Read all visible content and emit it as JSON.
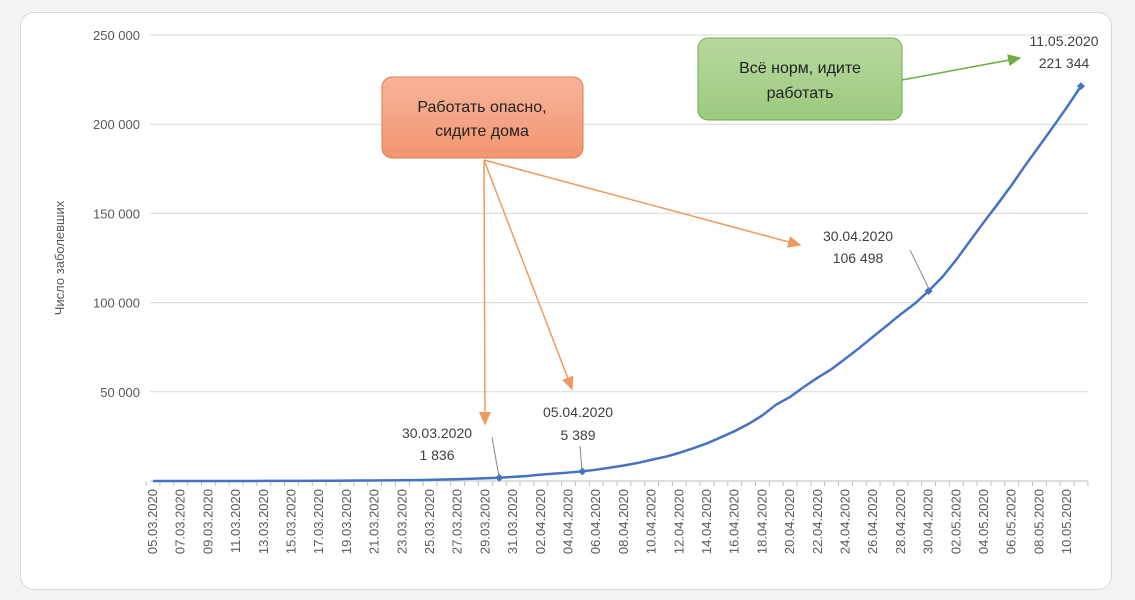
{
  "chart_data": {
    "type": "line",
    "title": "",
    "xlabel": "",
    "ylabel": "Число заболевших",
    "ylim": [
      0,
      250000
    ],
    "yticks": [
      50000,
      100000,
      150000,
      200000,
      250000
    ],
    "ytick_labels": [
      "50 000",
      "100 000",
      "150 000",
      "200 000",
      "250 000"
    ],
    "grid": true,
    "legend": "none",
    "line_color": "#4472c4",
    "x": [
      "05.03.2020",
      "06.03.2020",
      "07.03.2020",
      "08.03.2020",
      "09.03.2020",
      "10.03.2020",
      "11.03.2020",
      "12.03.2020",
      "13.03.2020",
      "14.03.2020",
      "15.03.2020",
      "16.03.2020",
      "17.03.2020",
      "18.03.2020",
      "19.03.2020",
      "20.03.2020",
      "21.03.2020",
      "22.03.2020",
      "23.03.2020",
      "24.03.2020",
      "25.03.2020",
      "26.03.2020",
      "27.03.2020",
      "28.03.2020",
      "29.03.2020",
      "30.03.2020",
      "31.03.2020",
      "01.04.2020",
      "02.04.2020",
      "03.04.2020",
      "04.04.2020",
      "05.04.2020",
      "06.04.2020",
      "07.04.2020",
      "08.04.2020",
      "09.04.2020",
      "10.04.2020",
      "11.04.2020",
      "12.04.2020",
      "13.04.2020",
      "14.04.2020",
      "15.04.2020",
      "16.04.2020",
      "17.04.2020",
      "18.04.2020",
      "19.04.2020",
      "20.04.2020",
      "21.04.2020",
      "22.04.2020",
      "23.04.2020",
      "24.04.2020",
      "25.04.2020",
      "26.04.2020",
      "27.04.2020",
      "28.04.2020",
      "29.04.2020",
      "30.04.2020",
      "01.05.2020",
      "02.05.2020",
      "03.05.2020",
      "04.05.2020",
      "05.05.2020",
      "06.05.2020",
      "07.05.2020",
      "08.05.2020",
      "09.05.2020",
      "10.05.2020",
      "11.05.2020"
    ],
    "values": [
      4,
      10,
      14,
      17,
      17,
      20,
      20,
      28,
      45,
      59,
      63,
      93,
      114,
      147,
      199,
      253,
      306,
      367,
      438,
      495,
      658,
      840,
      1036,
      1264,
      1534,
      1836,
      2337,
      2777,
      3548,
      4149,
      4731,
      5389,
      6343,
      7497,
      8672,
      10131,
      11917,
      13584,
      15770,
      18328,
      21102,
      24490,
      27938,
      32008,
      36793,
      42853,
      47121,
      52763,
      57999,
      62773,
      68622,
      74588,
      80949,
      87147,
      93558,
      99399,
      106498,
      114431,
      124054,
      134687,
      145268,
      155370,
      165929,
      177160,
      187859,
      198676,
      209688,
      221344
    ],
    "xtick_labels": [
      "05.03.2020",
      "07.03.2020",
      "09.03.2020",
      "11.03.2020",
      "13.03.2020",
      "15.03.2020",
      "17.03.2020",
      "19.03.2020",
      "21.03.2020",
      "23.03.2020",
      "25.03.2020",
      "27.03.2020",
      "29.03.2020",
      "31.03.2020",
      "02.04.2020",
      "04.04.2020",
      "06.04.2020",
      "08.04.2020",
      "10.04.2020",
      "12.04.2020",
      "14.04.2020",
      "16.04.2020",
      "18.04.2020",
      "20.04.2020",
      "22.04.2020",
      "24.04.2020",
      "26.04.2020",
      "28.04.2020",
      "30.04.2020",
      "02.05.2020",
      "04.05.2020",
      "06.05.2020",
      "08.05.2020",
      "10.05.2020"
    ],
    "data_labels": [
      {
        "date": "30.03.2020",
        "value": "1 836"
      },
      {
        "date": "05.04.2020",
        "value": "5 389"
      },
      {
        "date": "30.04.2020",
        "value": "106 498"
      },
      {
        "date": "11.05.2020",
        "value": "221 344"
      }
    ],
    "annotations": [
      {
        "text_lines": [
          "Работать опасно,",
          "сидите дома"
        ],
        "color": "#f4a582",
        "border": "#e07b4f",
        "arrow_color": "#ed9a5c"
      },
      {
        "text_lines": [
          "Всё норм, идите",
          "работать"
        ],
        "color": "#a9d18e",
        "border": "#70ad47",
        "arrow_color": "#70ad47"
      }
    ]
  }
}
